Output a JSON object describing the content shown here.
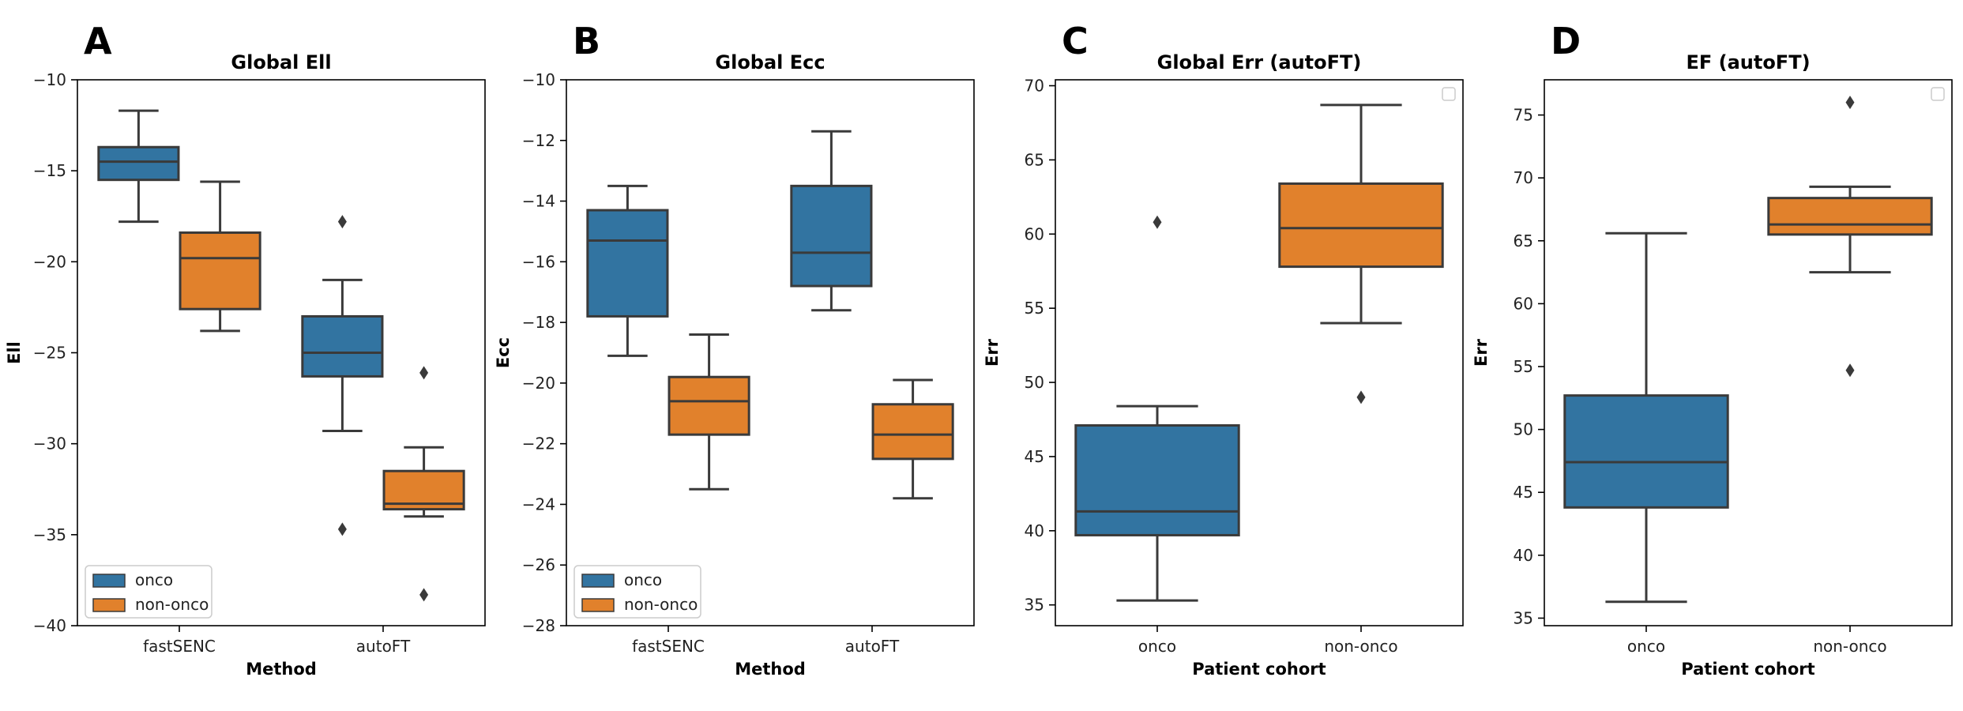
{
  "colors": {
    "onco": "#3274a1",
    "non_onco": "#e1812c",
    "line": "#3a3a3a"
  },
  "chart_data": [
    {
      "letter": "A",
      "type": "box",
      "title": "Global Ell",
      "xlabel": "Method",
      "ylabel": "Ell",
      "ylim": [
        -40,
        -10
      ],
      "yticks": [
        -10,
        -15,
        -20,
        -25,
        -30,
        -35,
        -40
      ],
      "ytick_labels": [
        "−10",
        "−15",
        "−20",
        "−25",
        "−30",
        "−35",
        "−40"
      ],
      "categories": [
        "fastSENC",
        "autoFT"
      ],
      "legend": {
        "show": true,
        "location": "lower-left",
        "entries": [
          "onco",
          "non-onco"
        ]
      },
      "series": [
        {
          "name": "onco",
          "color_key": "onco",
          "boxes": [
            {
              "category": "fastSENC",
              "whislo": -17.8,
              "q1": -15.5,
              "median": -14.5,
              "q3": -13.7,
              "whishi": -11.7,
              "fliers": []
            },
            {
              "category": "autoFT",
              "whislo": -29.3,
              "q1": -26.3,
              "median": -25.0,
              "q3": -23.0,
              "whishi": -21.0,
              "fliers": [
                -17.8,
                -34.7
              ]
            }
          ]
        },
        {
          "name": "non-onco",
          "color_key": "non_onco",
          "boxes": [
            {
              "category": "fastSENC",
              "whislo": -23.8,
              "q1": -22.6,
              "median": -19.8,
              "q3": -18.4,
              "whishi": -15.6,
              "fliers": []
            },
            {
              "category": "autoFT",
              "whislo": -34.0,
              "q1": -33.6,
              "median": -33.3,
              "q3": -31.5,
              "whishi": -30.2,
              "fliers": [
                -26.1,
                -38.3
              ]
            }
          ]
        }
      ]
    },
    {
      "letter": "B",
      "type": "box",
      "title": "Global Ecc",
      "xlabel": "Method",
      "ylabel": "Ecc",
      "ylim": [
        -28,
        -10
      ],
      "yticks": [
        -10,
        -12,
        -14,
        -16,
        -18,
        -20,
        -22,
        -24,
        -26,
        -28
      ],
      "ytick_labels": [
        "−10",
        "−12",
        "−14",
        "−16",
        "−18",
        "−20",
        "−22",
        "−24",
        "−26",
        "−28"
      ],
      "categories": [
        "fastSENC",
        "autoFT"
      ],
      "legend": {
        "show": true,
        "location": "lower-left",
        "entries": [
          "onco",
          "non-onco"
        ]
      },
      "series": [
        {
          "name": "onco",
          "color_key": "onco",
          "boxes": [
            {
              "category": "fastSENC",
              "whislo": -19.1,
              "q1": -17.8,
              "median": -15.3,
              "q3": -14.3,
              "whishi": -13.5,
              "fliers": []
            },
            {
              "category": "autoFT",
              "whislo": -17.6,
              "q1": -16.8,
              "median": -15.7,
              "q3": -13.5,
              "whishi": -11.7,
              "fliers": []
            }
          ]
        },
        {
          "name": "non-onco",
          "color_key": "non_onco",
          "boxes": [
            {
              "category": "fastSENC",
              "whislo": -23.5,
              "q1": -21.7,
              "median": -20.6,
              "q3": -19.8,
              "whishi": -18.4,
              "fliers": []
            },
            {
              "category": "autoFT",
              "whislo": -23.8,
              "q1": -22.5,
              "median": -21.7,
              "q3": -20.7,
              "whishi": -19.9,
              "fliers": []
            }
          ]
        }
      ]
    },
    {
      "letter": "C",
      "type": "box",
      "title": "Global Err (autoFT)",
      "xlabel": "Patient cohort",
      "ylabel": "Err",
      "ylim": [
        33.6,
        70.4
      ],
      "yticks": [
        35,
        40,
        45,
        50,
        55,
        60,
        65,
        70
      ],
      "ytick_labels": [
        "35",
        "40",
        "45",
        "50",
        "55",
        "60",
        "65",
        "70"
      ],
      "categories": [
        "onco",
        "non-onco"
      ],
      "legend": {
        "show": true,
        "location": "upper-right",
        "entries": []
      },
      "series": [
        {
          "name": "onco",
          "color_key": "onco",
          "boxes": [
            {
              "category": "onco",
              "whislo": 35.3,
              "q1": 39.7,
              "median": 41.3,
              "q3": 47.1,
              "whishi": 48.4,
              "fliers": [
                60.8
              ]
            }
          ]
        },
        {
          "name": "non-onco",
          "color_key": "non_onco",
          "boxes": [
            {
              "category": "non-onco",
              "whislo": 54.0,
              "q1": 57.8,
              "median": 60.4,
              "q3": 63.4,
              "whishi": 68.7,
              "fliers": [
                49.0
              ]
            }
          ]
        }
      ]
    },
    {
      "letter": "D",
      "type": "box",
      "title": "EF (autoFT)",
      "xlabel": "Patient cohort",
      "ylabel": "Err",
      "ylim": [
        34.4,
        77.8
      ],
      "yticks": [
        35,
        40,
        45,
        50,
        55,
        60,
        65,
        70,
        75
      ],
      "ytick_labels": [
        "35",
        "40",
        "45",
        "50",
        "55",
        "60",
        "65",
        "70",
        "75"
      ],
      "categories": [
        "onco",
        "non-onco"
      ],
      "legend": {
        "show": true,
        "location": "upper-right",
        "entries": []
      },
      "series": [
        {
          "name": "onco",
          "color_key": "onco",
          "boxes": [
            {
              "category": "onco",
              "whislo": 36.3,
              "q1": 43.8,
              "median": 47.4,
              "q3": 52.7,
              "whishi": 65.6,
              "fliers": []
            }
          ]
        },
        {
          "name": "non-onco",
          "color_key": "non_onco",
          "boxes": [
            {
              "category": "non-onco",
              "whislo": 62.5,
              "q1": 65.5,
              "median": 66.3,
              "q3": 68.4,
              "whishi": 69.3,
              "fliers": [
                76.0,
                54.7
              ]
            }
          ]
        }
      ]
    }
  ]
}
